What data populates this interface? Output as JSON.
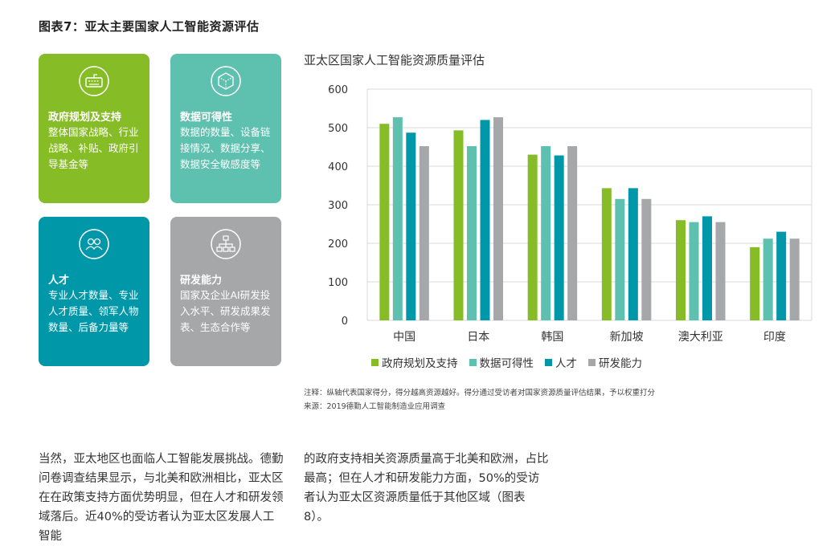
{
  "figure_title": "图表7：亚太主要国家人工智能资源评估",
  "cards": [
    {
      "title": "政府规划及支持",
      "desc": "整体国家战略、行业战略、补贴、政府引导基金等",
      "icon": "keyboard-icon",
      "color": "#86bc25"
    },
    {
      "title": "数据可得性",
      "desc": "数据的数量、设备链接情况、数据分享、数据安全敏感度等",
      "icon": "cube-icon",
      "color": "#5ec0ae"
    },
    {
      "title": "人才",
      "desc": "专业人才数量、专业人才质量、领军人物数量、后备力量等",
      "icon": "people-icon",
      "color": "#0097a9"
    },
    {
      "title": "研发能力",
      "desc": "国家及企业AI研发投入水平、研发成果发表、生态合作等",
      "icon": "hierarchy-icon",
      "color": "#a5a7a9"
    }
  ],
  "chart_data": {
    "type": "bar",
    "title": "亚太区国家人工智能资源质量评估",
    "categories": [
      "中国",
      "日本",
      "韩国",
      "新加坡",
      "澳大利亚",
      "印度"
    ],
    "series": [
      {
        "name": "政府规划及支持",
        "color": "#86bc25",
        "values": [
          510,
          493,
          430,
          343,
          260,
          190
        ]
      },
      {
        "name": "数据可得性",
        "color": "#5ec0ae",
        "values": [
          527,
          452,
          452,
          315,
          255,
          212
        ]
      },
      {
        "name": "人才",
        "color": "#0097a9",
        "values": [
          487,
          520,
          428,
          343,
          270,
          230
        ]
      },
      {
        "name": "研发能力",
        "color": "#a5a7a9",
        "values": [
          452,
          527,
          452,
          315,
          255,
          212
        ]
      }
    ],
    "yticks": [
      0,
      100,
      200,
      300,
      400,
      500,
      600
    ],
    "ylim": [
      0,
      600
    ],
    "grid": true,
    "legend_position": "bottom"
  },
  "notes": {
    "line1": "注释：纵轴代表国家得分，得分越高资源越好。得分通过受访者对国家资源质量评估结果，予以权重打分",
    "line2": "来源：2019德勤人工智能制造业应用调查"
  },
  "paragraphs": {
    "left": "当然，亚太地区也面临人工智能发展挑战。德勤问卷调查结果显示，与北美和欧洲相比，亚太区在在政策支持方面优势明显，但在人才和研发领域落后。近40%的受访者认为亚太区发展人工智能",
    "right": "的政府支持相关资源质量高于北美和欧洲，占比最高；但在人才和研发能力方面，50%的受访者认为亚太区资源质量低于其他区域（图表8）。"
  }
}
